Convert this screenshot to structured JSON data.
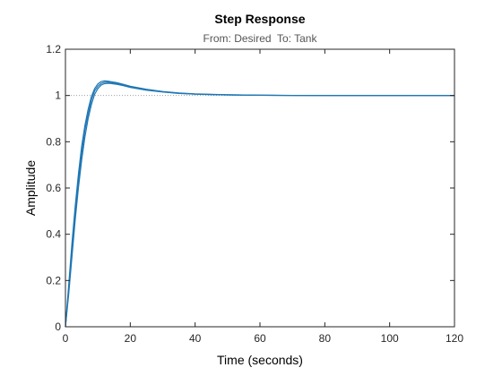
{
  "chart_data": {
    "type": "line",
    "title": "Step Response",
    "subtitle": "From: Desired  To: Tank",
    "xlabel": "Time (seconds)",
    "ylabel": "Amplitude",
    "xlim": [
      0,
      120
    ],
    "ylim": [
      0,
      1.2
    ],
    "xticks": [
      0,
      20,
      40,
      60,
      80,
      100,
      120
    ],
    "yticks": [
      0,
      0.2,
      0.4,
      0.6,
      0.8,
      1,
      1.2
    ],
    "xtick_labels": [
      "0",
      "20",
      "40",
      "60",
      "80",
      "100",
      "120"
    ],
    "ytick_labels": [
      "0",
      "0.2",
      "0.4",
      "0.6",
      "0.8",
      "1",
      "1.2"
    ],
    "grid": false,
    "reference_line": {
      "y": 1,
      "style": "dotted",
      "color": "#a0a0a0"
    },
    "line_color": "#1f77b4",
    "series": [
      {
        "x": [
          0,
          1,
          2,
          3,
          4,
          5,
          6,
          7,
          8,
          9,
          10,
          11,
          12,
          13,
          14,
          16,
          18,
          20,
          25,
          30,
          35,
          40,
          45,
          50,
          60,
          70,
          80,
          90,
          100,
          110,
          120
        ],
        "values": [
          0,
          0.18,
          0.36,
          0.52,
          0.66,
          0.78,
          0.87,
          0.94,
          0.995,
          1.03,
          1.05,
          1.06,
          1.063,
          1.062,
          1.06,
          1.055,
          1.048,
          1.04,
          1.027,
          1.017,
          1.011,
          1.007,
          1.005,
          1.003,
          1.001,
          1.0005,
          1.0,
          1.0,
          1.0,
          1.0,
          1.0
        ]
      },
      {
        "x": [
          0,
          1,
          2,
          3,
          4,
          5,
          6,
          7,
          8,
          9,
          10,
          11,
          12,
          13,
          14,
          16,
          18,
          20,
          25,
          30,
          35,
          40,
          45,
          50,
          60,
          70,
          80,
          90,
          100,
          110,
          120
        ],
        "values": [
          0,
          0.16,
          0.33,
          0.49,
          0.63,
          0.75,
          0.85,
          0.92,
          0.98,
          1.02,
          1.04,
          1.052,
          1.057,
          1.058,
          1.056,
          1.052,
          1.045,
          1.038,
          1.025,
          1.016,
          1.01,
          1.006,
          1.004,
          1.003,
          1.001,
          1.0005,
          1.0,
          1.0,
          1.0,
          1.0,
          1.0
        ]
      },
      {
        "x": [
          0,
          1,
          2,
          3,
          4,
          5,
          6,
          7,
          8,
          9,
          10,
          11,
          12,
          13,
          14,
          16,
          18,
          20,
          25,
          30,
          35,
          40,
          45,
          50,
          60,
          70,
          80,
          90,
          100,
          110,
          120
        ],
        "values": [
          0,
          0.14,
          0.3,
          0.46,
          0.6,
          0.72,
          0.82,
          0.9,
          0.96,
          1.005,
          1.03,
          1.045,
          1.051,
          1.053,
          1.052,
          1.048,
          1.042,
          1.035,
          1.023,
          1.015,
          1.009,
          1.006,
          1.004,
          1.002,
          1.001,
          1.0,
          1.0,
          1.0,
          1.0,
          1.0,
          1.0
        ]
      }
    ]
  }
}
